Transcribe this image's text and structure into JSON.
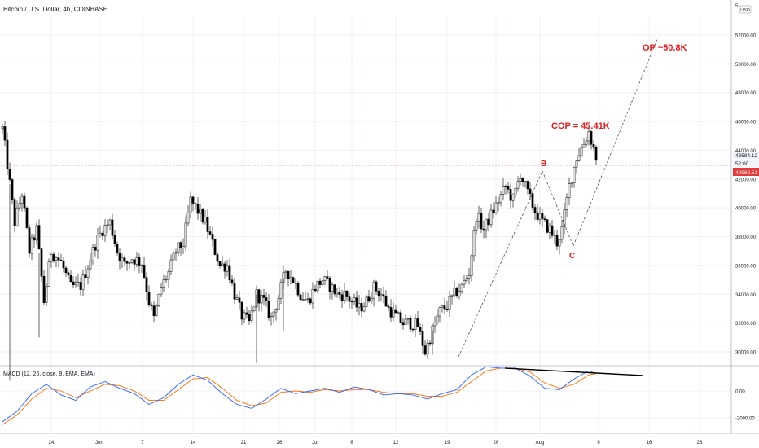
{
  "header": {
    "symbol_title": "Bitcoin / U.S. Dollar, 4h, COINBASE",
    "currency_badge": "USD"
  },
  "colors": {
    "candle_body": "#000000",
    "grid": "#eef0f3",
    "price_line": "#e23a3a",
    "annotation": "#e01e1e",
    "macd_line": "#2962ff",
    "signal_line": "#ff6d00",
    "trendline": "#000000"
  },
  "price_axis": {
    "tick_labels": [
      "30000.00",
      "32000.00",
      "34000.00",
      "36000.00",
      "38000.00",
      "40000.00",
      "42000.00",
      "44000.00",
      "46000.00",
      "48000.00",
      "50000.00",
      "52000.00",
      "5"
    ],
    "last_price_tag": "43584.12",
    "countdown_tag": "52:00",
    "line_price_tag": "42962.51"
  },
  "time_axis": {
    "tick_labels": [
      "24",
      "Jun",
      "7",
      "14",
      "21",
      "26",
      "Jul",
      "6",
      "12",
      "19",
      "26",
      "Aug",
      "9",
      "16",
      "23"
    ]
  },
  "annotations": {
    "op_label": "OP ~50.8K",
    "cop_label": "COP = 45.41K",
    "b_label": "B",
    "c_label": "C"
  },
  "macd": {
    "title": "MACD (12, 26, close, 9, EMA, EMA)",
    "axis_labels": [
      "0.00",
      "-2000.00"
    ]
  },
  "chart_data": {
    "type": "candlestick",
    "symbol": "Bitcoin / U.S. Dollar",
    "interval": "4h",
    "exchange": "COINBASE",
    "currency": "USD",
    "ylim": [
      29000,
      55000
    ],
    "grid": true,
    "x_tick_labels": [
      "24",
      "Jun",
      "7",
      "14",
      "21",
      "26",
      "Jul",
      "6",
      "12",
      "19",
      "26",
      "Aug",
      "9",
      "16",
      "23"
    ],
    "horizontal_line": 42962.51,
    "last_price": 43584.12,
    "price_path": [
      [
        0,
        45500
      ],
      [
        2,
        43000
      ],
      [
        5,
        39000
      ],
      [
        8,
        41000
      ],
      [
        11,
        37000
      ],
      [
        14,
        38500
      ],
      [
        17,
        33500
      ],
      [
        20,
        37000
      ],
      [
        24,
        36200
      ],
      [
        28,
        34500
      ],
      [
        32,
        34600
      ],
      [
        35,
        36000
      ],
      [
        38,
        37500
      ],
      [
        41,
        38500
      ],
      [
        44,
        39000
      ],
      [
        47,
        37000
      ],
      [
        50,
        36000
      ],
      [
        53,
        36500
      ],
      [
        57,
        36200
      ],
      [
        60,
        33500
      ],
      [
        62,
        32300
      ],
      [
        65,
        34500
      ],
      [
        68,
        35500
      ],
      [
        71,
        37000
      ],
      [
        74,
        37500
      ],
      [
        77,
        40500
      ],
      [
        80,
        39800
      ],
      [
        83,
        39000
      ],
      [
        86,
        37500
      ],
      [
        89,
        36000
      ],
      [
        92,
        36000
      ],
      [
        95,
        34000
      ],
      [
        98,
        32500
      ],
      [
        101,
        32000
      ],
      [
        104,
        34000
      ],
      [
        107,
        33500
      ],
      [
        110,
        32300
      ],
      [
        113,
        33800
      ],
      [
        116,
        35700
      ],
      [
        119,
        35000
      ],
      [
        122,
        34000
      ],
      [
        125,
        33500
      ],
      [
        128,
        34500
      ],
      [
        131,
        35000
      ],
      [
        134,
        34600
      ],
      [
        137,
        34000
      ],
      [
        140,
        34000
      ],
      [
        143,
        33500
      ],
      [
        146,
        33000
      ],
      [
        149,
        33500
      ],
      [
        152,
        34500
      ],
      [
        155,
        34000
      ],
      [
        158,
        33000
      ],
      [
        161,
        32500
      ],
      [
        164,
        32000
      ],
      [
        167,
        32000
      ],
      [
        170,
        31800
      ],
      [
        173,
        30000
      ],
      [
        176,
        31500
      ],
      [
        179,
        32800
      ],
      [
        182,
        33200
      ],
      [
        185,
        34000
      ],
      [
        188,
        34500
      ],
      [
        191,
        35500
      ],
      [
        194,
        39500
      ],
      [
        197,
        38500
      ],
      [
        200,
        39500
      ],
      [
        203,
        40500
      ],
      [
        206,
        41500
      ],
      [
        209,
        40500
      ],
      [
        212,
        42400
      ],
      [
        215,
        41000
      ],
      [
        218,
        39800
      ],
      [
        221,
        39000
      ],
      [
        224,
        38500
      ],
      [
        227,
        37600
      ],
      [
        229,
        38500
      ],
      [
        232,
        41500
      ],
      [
        235,
        43500
      ],
      [
        238,
        44500
      ],
      [
        240,
        45300
      ],
      [
        243,
        43500
      ]
    ],
    "macd_line": [
      [
        0,
        -2300
      ],
      [
        6,
        -1500
      ],
      [
        12,
        -200
      ],
      [
        18,
        500
      ],
      [
        24,
        -300
      ],
      [
        30,
        -700
      ],
      [
        36,
        300
      ],
      [
        42,
        700
      ],
      [
        48,
        200
      ],
      [
        54,
        -200
      ],
      [
        60,
        -1000
      ],
      [
        66,
        -500
      ],
      [
        72,
        500
      ],
      [
        78,
        1200
      ],
      [
        84,
        800
      ],
      [
        90,
        -200
      ],
      [
        96,
        -1000
      ],
      [
        102,
        -1300
      ],
      [
        108,
        -600
      ],
      [
        114,
        200
      ],
      [
        120,
        -200
      ],
      [
        126,
        0
      ],
      [
        132,
        200
      ],
      [
        138,
        -100
      ],
      [
        144,
        300
      ],
      [
        150,
        100
      ],
      [
        156,
        -300
      ],
      [
        162,
        -200
      ],
      [
        168,
        -300
      ],
      [
        174,
        -600
      ],
      [
        180,
        -200
      ],
      [
        186,
        100
      ],
      [
        192,
        1200
      ],
      [
        198,
        1800
      ],
      [
        204,
        1700
      ],
      [
        210,
        1700
      ],
      [
        216,
        1100
      ],
      [
        222,
        200
      ],
      [
        228,
        100
      ],
      [
        234,
        900
      ],
      [
        240,
        1500
      ],
      [
        243,
        1300
      ]
    ],
    "signal_line": [
      [
        0,
        -2500
      ],
      [
        6,
        -1800
      ],
      [
        12,
        -600
      ],
      [
        18,
        200
      ],
      [
        24,
        0
      ],
      [
        30,
        -500
      ],
      [
        36,
        0
      ],
      [
        42,
        500
      ],
      [
        48,
        400
      ],
      [
        54,
        0
      ],
      [
        60,
        -700
      ],
      [
        66,
        -700
      ],
      [
        72,
        100
      ],
      [
        78,
        900
      ],
      [
        84,
        1000
      ],
      [
        90,
        200
      ],
      [
        96,
        -700
      ],
      [
        102,
        -1100
      ],
      [
        108,
        -900
      ],
      [
        114,
        -100
      ],
      [
        120,
        0
      ],
      [
        126,
        -100
      ],
      [
        132,
        100
      ],
      [
        138,
        0
      ],
      [
        144,
        100
      ],
      [
        150,
        100
      ],
      [
        156,
        -100
      ],
      [
        162,
        -200
      ],
      [
        168,
        -200
      ],
      [
        174,
        -400
      ],
      [
        180,
        -400
      ],
      [
        186,
        -100
      ],
      [
        192,
        700
      ],
      [
        198,
        1500
      ],
      [
        204,
        1700
      ],
      [
        210,
        1700
      ],
      [
        216,
        1400
      ],
      [
        222,
        600
      ],
      [
        228,
        200
      ],
      [
        234,
        500
      ],
      [
        240,
        1200
      ],
      [
        243,
        1300
      ]
    ]
  }
}
